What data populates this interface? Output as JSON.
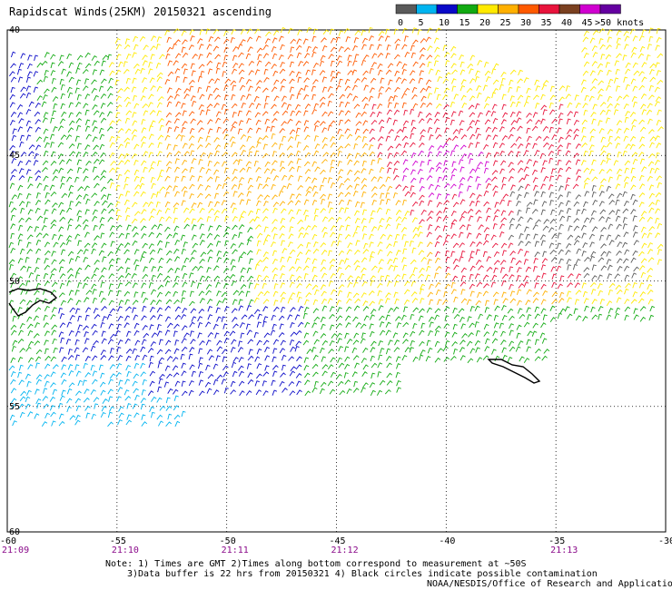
{
  "title": "Rapidscat Winds(25KM) 20150321 ascending",
  "legend": {
    "unit_label": ">50 knots",
    "ticks": [
      "0",
      "5",
      "10",
      "15",
      "20",
      "25",
      "30",
      "35",
      "40",
      "45"
    ],
    "colors": [
      "#5a5a5a",
      "#00b4f0",
      "#0a0ac8",
      "#12aa12",
      "#ffea00",
      "#ffb000",
      "#ff5a00",
      "#e8143c",
      "#7a4020",
      "#d000d0",
      "#6400a0"
    ]
  },
  "axes": {
    "lon_labels": [
      "-60",
      "-55",
      "-50",
      "-45",
      "-40",
      "-35",
      "-30"
    ],
    "lat_labels": [
      "40",
      "45",
      "50",
      "55",
      "60"
    ],
    "lon_range": [
      -60,
      -30
    ],
    "lat_range": [
      40,
      60
    ]
  },
  "times": [
    "21:09",
    "21:10",
    "21:11",
    "21:12",
    "21:13"
  ],
  "notes": [
    "Note: 1) Times are GMT 2)Times along bottom correspond to measurement at ~50S",
    "3)Data buffer is 22 hrs from 20150321 4) Black circles indicate possible contamination",
    "NOAA/NESDIS/Office of Research and Applications"
  ]
}
